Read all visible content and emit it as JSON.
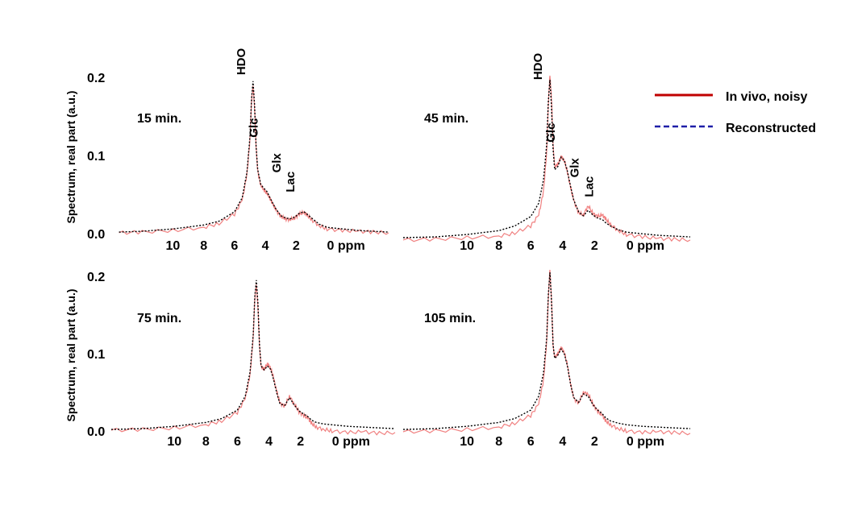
{
  "chart_data": [
    {
      "type": "line",
      "time_label": "15 min.",
      "ylabel": "Spectrum, real part (a.u.)",
      "y_ticks": [
        "0.2",
        "0.1",
        "0.0"
      ],
      "x_ticks": [
        "10",
        "8",
        "6",
        "4",
        "2",
        "0 ppm"
      ],
      "xlim": [
        14,
        -4
      ],
      "ylim": [
        0,
        0.21
      ],
      "peak_labels": [
        "HDO",
        "Glc",
        "Glx",
        "Lac"
      ],
      "series": [
        {
          "name": "In vivo, noisy",
          "x": [
            13.5,
            12,
            10,
            8,
            7,
            6,
            5.5,
            5.2,
            5.0,
            4.9,
            4.8,
            4.7,
            4.6,
            4.5,
            4.3,
            4.1,
            3.9,
            3.7,
            3.5,
            3.3,
            3.0,
            2.7,
            2.4,
            2.1,
            1.8,
            1.5,
            1.3,
            1.0,
            0.5,
            0,
            -1,
            -2,
            -3,
            -4
          ],
          "y": [
            0.001,
            0.002,
            0.004,
            0.008,
            0.013,
            0.025,
            0.043,
            0.075,
            0.12,
            0.168,
            0.19,
            0.16,
            0.11,
            0.08,
            0.062,
            0.056,
            0.052,
            0.045,
            0.037,
            0.03,
            0.022,
            0.019,
            0.018,
            0.02,
            0.025,
            0.027,
            0.024,
            0.018,
            0.01,
            0.006,
            0.004,
            0.003,
            0.002,
            0.001
          ]
        },
        {
          "name": "Reconstructed",
          "x": [
            13.5,
            12,
            10,
            8,
            7,
            6,
            5.5,
            5.2,
            5.0,
            4.9,
            4.8,
            4.7,
            4.6,
            4.5,
            4.3,
            4.1,
            3.9,
            3.7,
            3.5,
            3.3,
            3.0,
            2.7,
            2.4,
            2.1,
            1.8,
            1.5,
            1.3,
            1.0,
            0.5,
            0,
            -1,
            -2,
            -3,
            -4
          ],
          "y": [
            0.002,
            0.003,
            0.006,
            0.011,
            0.016,
            0.028,
            0.046,
            0.078,
            0.124,
            0.172,
            0.195,
            0.165,
            0.112,
            0.082,
            0.063,
            0.058,
            0.054,
            0.046,
            0.038,
            0.031,
            0.023,
            0.02,
            0.019,
            0.021,
            0.026,
            0.028,
            0.025,
            0.02,
            0.012,
            0.008,
            0.006,
            0.004,
            0.003,
            0.002
          ]
        }
      ]
    },
    {
      "type": "line",
      "time_label": "45 min.",
      "ylabel": "",
      "y_ticks": [],
      "x_ticks": [
        "10",
        "8",
        "6",
        "4",
        "2",
        "0 ppm"
      ],
      "xlim": [
        14,
        -4
      ],
      "ylim": [
        0,
        0.21
      ],
      "peak_labels": [
        "HDO",
        "Glc",
        "Glx",
        "Lac"
      ],
      "series": [
        {
          "name": "In vivo, noisy",
          "x": [
            14,
            12,
            10,
            8,
            7,
            6,
            5.5,
            5.2,
            5.0,
            4.9,
            4.8,
            4.7,
            4.6,
            4.5,
            4.3,
            4.1,
            3.9,
            3.7,
            3.5,
            3.3,
            3.0,
            2.7,
            2.4,
            2.1,
            1.8,
            1.5,
            1.3,
            1.0,
            0.5,
            0,
            -1,
            -2,
            -3,
            -4
          ],
          "y": [
            -0.002,
            -0.001,
            0.001,
            0.003,
            0.007,
            0.016,
            0.03,
            0.06,
            0.11,
            0.17,
            0.21,
            0.18,
            0.12,
            0.092,
            0.095,
            0.105,
            0.1,
            0.085,
            0.065,
            0.048,
            0.033,
            0.03,
            0.042,
            0.032,
            0.028,
            0.03,
            0.025,
            0.018,
            0.01,
            0.005,
            0.002,
            0.0,
            -0.001,
            -0.002
          ]
        },
        {
          "name": "Reconstructed",
          "x": [
            14,
            12,
            10,
            8,
            7,
            6,
            5.5,
            5.2,
            5.0,
            4.9,
            4.8,
            4.7,
            4.6,
            4.5,
            4.3,
            4.1,
            3.9,
            3.7,
            3.5,
            3.3,
            3.0,
            2.7,
            2.4,
            2.1,
            1.8,
            1.5,
            1.3,
            1.0,
            0.5,
            0,
            -1,
            -2,
            -3,
            -4
          ],
          "y": [
            0.001,
            0.002,
            0.005,
            0.01,
            0.016,
            0.028,
            0.045,
            0.075,
            0.12,
            0.175,
            0.203,
            0.17,
            0.115,
            0.088,
            0.092,
            0.104,
            0.1,
            0.086,
            0.066,
            0.049,
            0.034,
            0.029,
            0.036,
            0.03,
            0.026,
            0.024,
            0.02,
            0.016,
            0.011,
            0.008,
            0.006,
            0.004,
            0.003,
            0.002
          ]
        }
      ]
    },
    {
      "type": "line",
      "time_label": "75 min.",
      "ylabel": "Spectrum, real part (a.u.)",
      "y_ticks": [
        "0.2",
        "0.1",
        "0.0"
      ],
      "x_ticks": [
        "10",
        "8",
        "6",
        "4",
        "2",
        "0 ppm"
      ],
      "xlim": [
        14,
        -4
      ],
      "ylim": [
        0,
        0.21
      ],
      "peak_labels": [],
      "series": [
        {
          "name": "In vivo, noisy",
          "x": [
            14,
            12,
            10,
            8,
            7,
            6,
            5.5,
            5.2,
            5.0,
            4.9,
            4.8,
            4.7,
            4.6,
            4.5,
            4.3,
            4.1,
            3.9,
            3.7,
            3.5,
            3.3,
            3.0,
            2.7,
            2.4,
            2.1,
            1.8,
            1.5,
            1.3,
            1.0,
            0.5,
            0,
            -1,
            -2,
            -3,
            -4
          ],
          "y": [
            0.001,
            0.002,
            0.004,
            0.008,
            0.013,
            0.024,
            0.042,
            0.072,
            0.12,
            0.17,
            0.19,
            0.16,
            0.11,
            0.083,
            0.08,
            0.087,
            0.082,
            0.068,
            0.05,
            0.036,
            0.032,
            0.045,
            0.035,
            0.025,
            0.02,
            0.016,
            0.01,
            0.005,
            0.002,
            0.0,
            -0.002,
            -0.001,
            -0.003,
            -0.002
          ]
        },
        {
          "name": "Reconstructed",
          "x": [
            14,
            12,
            10,
            8,
            7,
            6,
            5.5,
            5.2,
            5.0,
            4.9,
            4.8,
            4.7,
            4.6,
            4.5,
            4.3,
            4.1,
            3.9,
            3.7,
            3.5,
            3.3,
            3.0,
            2.7,
            2.4,
            2.1,
            1.8,
            1.5,
            1.3,
            1.0,
            0.5,
            0,
            -1,
            -2,
            -3,
            -4
          ],
          "y": [
            0.002,
            0.003,
            0.006,
            0.011,
            0.016,
            0.027,
            0.045,
            0.076,
            0.124,
            0.174,
            0.195,
            0.165,
            0.112,
            0.084,
            0.079,
            0.084,
            0.08,
            0.066,
            0.049,
            0.035,
            0.033,
            0.043,
            0.034,
            0.026,
            0.022,
            0.018,
            0.014,
            0.011,
            0.009,
            0.008,
            0.006,
            0.005,
            0.004,
            0.003
          ]
        }
      ]
    },
    {
      "type": "line",
      "time_label": "105 min.",
      "ylabel": "",
      "y_ticks": [],
      "x_ticks": [
        "10",
        "8",
        "6",
        "4",
        "2",
        "0 ppm"
      ],
      "xlim": [
        14,
        -4
      ],
      "ylim": [
        0,
        0.21
      ],
      "peak_labels": [],
      "series": [
        {
          "name": "In vivo, noisy",
          "x": [
            14,
            12,
            10,
            8,
            7,
            6,
            5.5,
            5.2,
            5.0,
            4.9,
            4.8,
            4.7,
            4.6,
            4.5,
            4.3,
            4.1,
            3.9,
            3.7,
            3.5,
            3.3,
            3.0,
            2.7,
            2.4,
            2.1,
            1.8,
            1.5,
            1.3,
            1.0,
            0.5,
            0,
            -1,
            -2,
            -3,
            -4
          ],
          "y": [
            -0.001,
            0.0,
            0.002,
            0.005,
            0.01,
            0.02,
            0.035,
            0.065,
            0.115,
            0.17,
            0.21,
            0.17,
            0.11,
            0.095,
            0.1,
            0.108,
            0.102,
            0.085,
            0.06,
            0.042,
            0.036,
            0.05,
            0.048,
            0.035,
            0.025,
            0.02,
            0.013,
            0.008,
            0.003,
            0.0,
            -0.002,
            -0.001,
            -0.002,
            -0.003
          ]
        },
        {
          "name": "Reconstructed",
          "x": [
            14,
            12,
            10,
            8,
            7,
            6,
            5.5,
            5.2,
            5.0,
            4.9,
            4.8,
            4.7,
            4.6,
            4.5,
            4.3,
            4.1,
            3.9,
            3.7,
            3.5,
            3.3,
            3.0,
            2.7,
            2.4,
            2.1,
            1.8,
            1.5,
            1.3,
            1.0,
            0.5,
            0,
            -1,
            -2,
            -3,
            -4
          ],
          "y": [
            0.002,
            0.003,
            0.006,
            0.011,
            0.016,
            0.027,
            0.045,
            0.075,
            0.12,
            0.176,
            0.205,
            0.17,
            0.112,
            0.094,
            0.098,
            0.106,
            0.1,
            0.084,
            0.06,
            0.043,
            0.037,
            0.048,
            0.045,
            0.034,
            0.027,
            0.022,
            0.017,
            0.013,
            0.01,
            0.008,
            0.006,
            0.005,
            0.004,
            0.003
          ]
        }
      ]
    }
  ],
  "legend": {
    "noisy_label": "In vivo, noisy",
    "recon_label": "Reconstructed",
    "noisy_legend_color": "#c00000",
    "recon_legend_color": "#1f1fa8",
    "noisy_plot_color": "#f08080",
    "recon_plot_color": "#000000"
  }
}
